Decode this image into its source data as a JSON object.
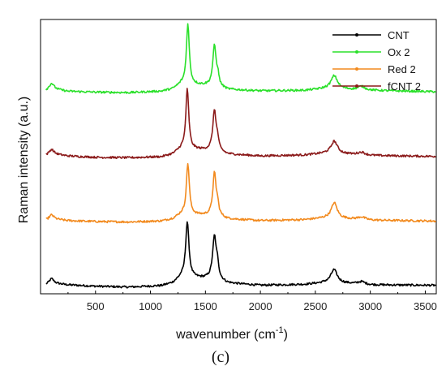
{
  "chart_data": {
    "type": "line",
    "xlabel": "wavenumber (cm",
    "xlabel_sup": "-1",
    "xlabel_end": ")",
    "ylabel": "Raman intensity (a.u.)",
    "caption": "(c)",
    "xlim": [
      0,
      3600
    ],
    "x_ticks": [
      500,
      1000,
      1500,
      2000,
      2500,
      3000,
      3500
    ],
    "y_ticks_shown": false,
    "grid": false,
    "legend_position": "top-right",
    "series": [
      {
        "name": "CNT",
        "color": "#000000",
        "offset": 0,
        "baseline": [
          [
            0,
            0.2
          ],
          [
            100,
            0.9
          ],
          [
            250,
            0.5
          ],
          [
            500,
            0.2
          ],
          [
            800,
            0.0
          ],
          [
            1100,
            0.3
          ],
          [
            1200,
            0.9
          ],
          [
            1280,
            2.2
          ],
          [
            1600,
            1.8
          ],
          [
            1700,
            0.9
          ],
          [
            2000,
            0.4
          ],
          [
            2400,
            0.6
          ],
          [
            2600,
            1.0
          ],
          [
            2800,
            0.8
          ],
          [
            3000,
            0.5
          ],
          [
            3600,
            0.4
          ]
        ],
        "peaks": [
          [
            100,
            1.0,
            25
          ],
          [
            1335,
            12.5,
            18
          ],
          [
            1582,
            9.5,
            20
          ],
          [
            1610,
            2.5,
            12
          ],
          [
            2670,
            3.0,
            35
          ],
          [
            2920,
            0.6,
            40
          ]
        ]
      },
      {
        "name": "Red 2",
        "color": "#f28a1e",
        "offset": 14.5,
        "baseline": [
          [
            0,
            0.2
          ],
          [
            100,
            0.8
          ],
          [
            250,
            0.4
          ],
          [
            500,
            0.2
          ],
          [
            800,
            0.1
          ],
          [
            1100,
            0.3
          ],
          [
            1200,
            0.8
          ],
          [
            1280,
            1.8
          ],
          [
            1600,
            1.5
          ],
          [
            1700,
            0.8
          ],
          [
            2000,
            0.4
          ],
          [
            2400,
            0.6
          ],
          [
            2600,
            1.0
          ],
          [
            2800,
            0.8
          ],
          [
            3000,
            0.5
          ],
          [
            3600,
            0.3
          ]
        ],
        "peaks": [
          [
            100,
            0.9,
            25
          ],
          [
            1340,
            11.5,
            16
          ],
          [
            1582,
            9.5,
            18
          ],
          [
            1610,
            2.0,
            12
          ],
          [
            2672,
            3.5,
            32
          ],
          [
            2920,
            0.6,
            40
          ]
        ]
      },
      {
        "name": "fCNT 2",
        "color": "#8b1a1a",
        "offset": 29.0,
        "baseline": [
          [
            0,
            0.2
          ],
          [
            100,
            0.9
          ],
          [
            250,
            0.4
          ],
          [
            500,
            0.1
          ],
          [
            800,
            0.0
          ],
          [
            1100,
            0.2
          ],
          [
            1200,
            0.8
          ],
          [
            1280,
            2.0
          ],
          [
            1600,
            1.6
          ],
          [
            1700,
            0.8
          ],
          [
            2000,
            0.4
          ],
          [
            2400,
            0.6
          ],
          [
            2600,
            1.0
          ],
          [
            2800,
            0.8
          ],
          [
            3000,
            0.5
          ],
          [
            3600,
            0.3
          ]
        ],
        "peaks": [
          [
            100,
            1.0,
            25
          ],
          [
            1335,
            13.5,
            16
          ],
          [
            1582,
            9.0,
            18
          ],
          [
            1610,
            2.0,
            12
          ],
          [
            2672,
            2.8,
            35
          ],
          [
            2920,
            0.6,
            40
          ]
        ]
      },
      {
        "name": "Ox 2",
        "color": "#2ae02a",
        "offset": 43.5,
        "baseline": [
          [
            0,
            0.2
          ],
          [
            100,
            1.0
          ],
          [
            250,
            0.4
          ],
          [
            500,
            0.2
          ],
          [
            800,
            0.1
          ],
          [
            1100,
            0.4
          ],
          [
            1200,
            0.9
          ],
          [
            1280,
            2.0
          ],
          [
            1600,
            1.6
          ],
          [
            1700,
            0.8
          ],
          [
            2000,
            0.5
          ],
          [
            2400,
            0.6
          ],
          [
            2600,
            1.0
          ],
          [
            2800,
            0.8
          ],
          [
            3000,
            0.6
          ],
          [
            3600,
            0.3
          ]
        ],
        "peaks": [
          [
            100,
            1.2,
            25
          ],
          [
            1340,
            13.5,
            16
          ],
          [
            1582,
            9.0,
            18
          ],
          [
            1612,
            2.0,
            12
          ],
          [
            2672,
            3.0,
            35
          ],
          [
            2920,
            0.8,
            40
          ]
        ]
      }
    ]
  }
}
